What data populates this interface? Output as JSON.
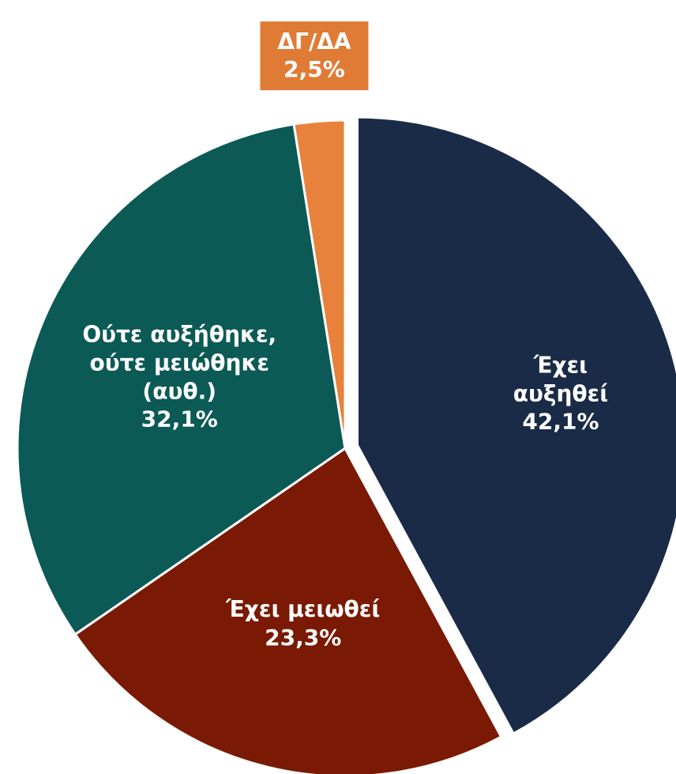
{
  "chart_data": {
    "type": "pie",
    "categories": [
      "Έχει\nαυξηθεί",
      "Έχει μειωθεί",
      "Ούτε αυξήθηκε,\nούτε μειώθηκε\n(αυθ.)",
      "ΔΓ/ΔΑ"
    ],
    "values": [
      42.1,
      23.3,
      32.1,
      2.5
    ],
    "value_labels": [
      "42,1%",
      "23,3%",
      "32,1%",
      "2,5%"
    ],
    "colors": [
      "#1a2b47",
      "#7a1a05",
      "#0b5a55",
      "#e8813c"
    ],
    "exploded": [
      true,
      false,
      false,
      false
    ]
  }
}
